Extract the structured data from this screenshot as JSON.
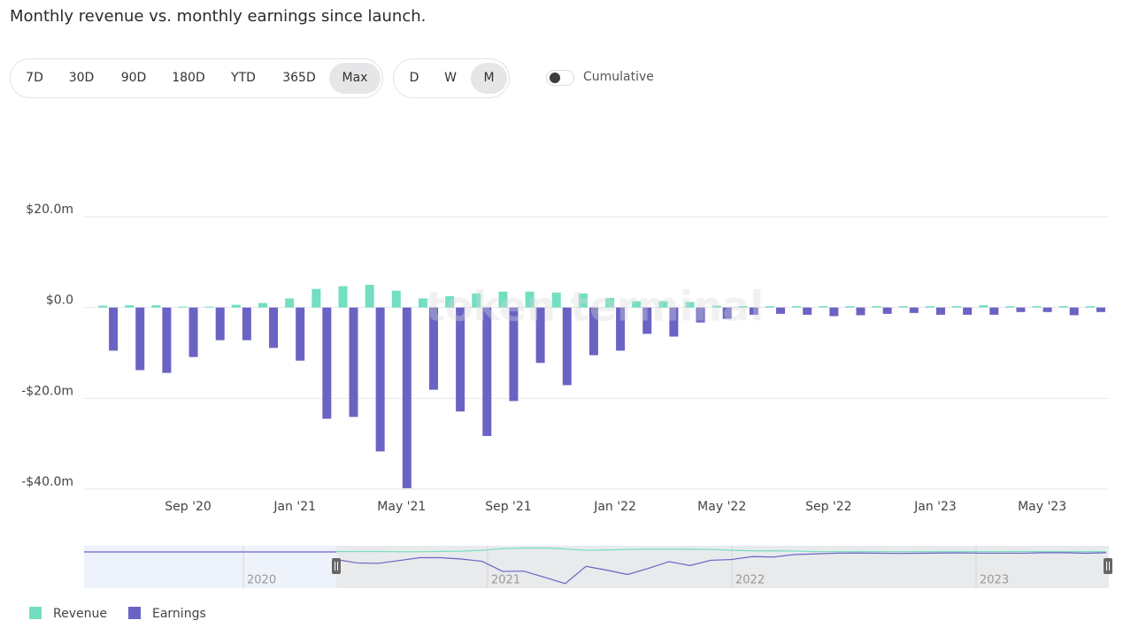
{
  "chart_data": {
    "type": "bar",
    "title": "Monthly revenue vs. monthly earnings since launch.",
    "watermark": "token terminal",
    "categories": [
      null,
      null,
      null,
      "Sep '20",
      null,
      null,
      null,
      "Jan '21",
      null,
      null,
      null,
      "May '21",
      null,
      null,
      null,
      "Sep '21",
      null,
      null,
      null,
      "Jan '22",
      null,
      null,
      null,
      "May '22",
      null,
      null,
      null,
      "Sep '22",
      null,
      null,
      null,
      "Jan '23",
      null,
      null,
      null,
      "May '23",
      null,
      null
    ],
    "series": [
      {
        "name": "Revenue",
        "color": "#72dfc1",
        "values": [
          0.4,
          0.5,
          0.5,
          0.2,
          0.2,
          0.6,
          1.0,
          2.0,
          4.1,
          4.7,
          5.0,
          3.7,
          2.0,
          2.5,
          3.1,
          3.5,
          3.5,
          3.3,
          3.1,
          2.1,
          1.4,
          1.4,
          1.2,
          0.4,
          0.3,
          0.3,
          0.3,
          0.3,
          0.3,
          0.3,
          0.3,
          0.3,
          0.3,
          0.5,
          0.3,
          0.3,
          0.3,
          0.3
        ]
      },
      {
        "name": "Earnings",
        "color": "#6b63c4",
        "values": [
          -9.5,
          -13.8,
          -14.4,
          -10.9,
          -7.2,
          -7.2,
          -8.9,
          -11.7,
          -24.5,
          -24.1,
          -31.7,
          -39.8,
          -18.1,
          -22.9,
          -28.3,
          -20.6,
          -12.2,
          -17.1,
          -10.5,
          -9.5,
          -5.8,
          -6.4,
          -3.3,
          -2.5,
          -1.6,
          -1.4,
          -1.6,
          -1.9,
          -1.7,
          -1.4,
          -1.2,
          -1.6,
          -1.6,
          -1.6,
          -1.0,
          -1.0,
          -1.7,
          -1.0
        ]
      }
    ],
    "ylim": [
      -40,
      20
    ],
    "yticks": [
      {
        "value": 20,
        "label": "$20.0m"
      },
      {
        "value": 0,
        "label": "$0.0"
      },
      {
        "value": -20,
        "label": "-$20.0m"
      },
      {
        "value": -40,
        "label": "-$40.0m"
      }
    ],
    "grid": true,
    "legend": "bottom-left"
  },
  "controls": {
    "ranges": [
      "7D",
      "30D",
      "90D",
      "180D",
      "YTD",
      "365D",
      "Max"
    ],
    "granularity": [
      "D",
      "W",
      "M"
    ],
    "toggle": "Cumulative"
  },
  "navigator": {
    "labels": [
      "2020",
      "2021",
      "2022",
      "2023"
    ]
  }
}
